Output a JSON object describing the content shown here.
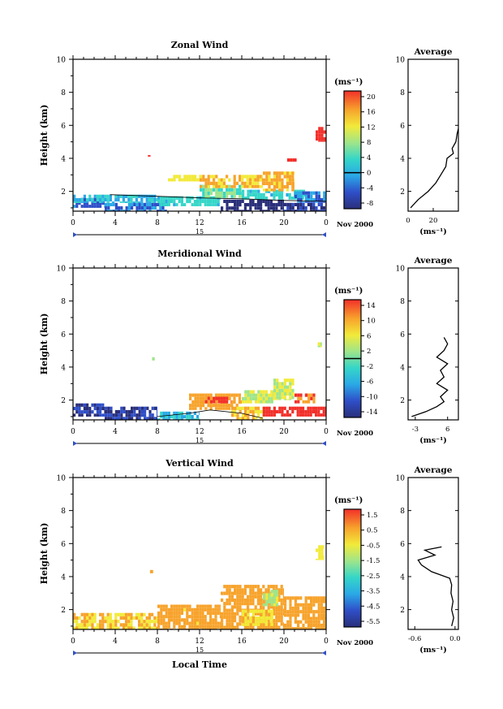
{
  "chart_data": [
    {
      "type": "heatmap",
      "title": "Zonal Wind",
      "ylabel": "Height (km)",
      "ylim": [
        0.8,
        10
      ],
      "yticks": [
        2,
        4,
        6,
        8,
        10
      ],
      "xlim": [
        0,
        24
      ],
      "xticks": [
        "0",
        "4",
        "8",
        "12",
        "16",
        "20",
        "0"
      ],
      "date_day": "15",
      "date_label": "Nov 2000",
      "colorbar_unit": "(ms⁻¹)",
      "colorbar_ticks": [
        "20",
        "16",
        "12",
        "8",
        "4",
        "0",
        "-4",
        "-8"
      ],
      "colorbar_range": [
        -10,
        22
      ],
      "blobs": [
        {
          "x": [
            0,
            3
          ],
          "y": [
            1.0,
            1.6
          ],
          "v": -3
        },
        {
          "x": [
            3,
            9
          ],
          "y": [
            0.8,
            1.3
          ],
          "v": -2
        },
        {
          "x": [
            0,
            8
          ],
          "y": [
            1.3,
            1.8
          ],
          "v": 2
        },
        {
          "x": [
            8,
            14
          ],
          "y": [
            1.1,
            1.7
          ],
          "v": 3
        },
        {
          "x": [
            14,
            20
          ],
          "y": [
            0.8,
            1.5
          ],
          "v": -8
        },
        {
          "x": [
            20,
            24
          ],
          "y": [
            0.8,
            1.3
          ],
          "v": -6
        },
        {
          "x": [
            12,
            16
          ],
          "y": [
            1.6,
            2.4
          ],
          "v": 6
        },
        {
          "x": [
            16,
            22
          ],
          "y": [
            1.5,
            2.1
          ],
          "v": 3
        },
        {
          "x": [
            12,
            18
          ],
          "y": [
            2.2,
            3.0
          ],
          "v": 14
        },
        {
          "x": [
            18,
            21
          ],
          "y": [
            2.0,
            3.2
          ],
          "v": 15
        },
        {
          "x": [
            9,
            12
          ],
          "y": [
            2.6,
            3.0
          ],
          "v": 12
        },
        {
          "x": [
            20.3,
            21.2
          ],
          "y": [
            3.8,
            4.0
          ],
          "v": 20
        },
        {
          "x": [
            23,
            24
          ],
          "y": [
            5.0,
            5.9
          ],
          "v": 21
        },
        {
          "x": [
            7.1,
            7.4
          ],
          "y": [
            4.1,
            4.2
          ],
          "v": 20
        },
        {
          "x": [
            21,
            24
          ],
          "y": [
            1.3,
            2.0
          ],
          "v": -2
        }
      ],
      "contour_zero": [
        [
          3.5,
          1.8
        ],
        [
          8,
          1.7
        ],
        [
          12,
          1.6
        ],
        [
          16,
          1.55
        ],
        [
          20,
          1.45
        ],
        [
          24,
          1.4
        ]
      ],
      "avg_profile": {
        "title": "Average",
        "xlabel": "(ms⁻¹)",
        "xticks": [
          "0",
          "20"
        ],
        "xlim": [
          0,
          40
        ],
        "heights": [
          1.0,
          1.5,
          2.0,
          2.5,
          3.0,
          3.5,
          4.0,
          4.3,
          4.6,
          5.0,
          5.5,
          5.8
        ],
        "values": [
          2,
          8,
          16,
          22,
          26,
          30,
          31,
          36,
          35,
          38,
          39,
          40
        ]
      }
    },
    {
      "type": "heatmap",
      "title": "Meridional Wind",
      "ylabel": "Height (km)",
      "ylim": [
        0.8,
        10
      ],
      "yticks": [
        2,
        4,
        6,
        8,
        10
      ],
      "xlim": [
        0,
        24
      ],
      "xticks": [
        "0",
        "4",
        "8",
        "12",
        "16",
        "20",
        "0"
      ],
      "date_day": "15",
      "date_label": "Nov 2000",
      "colorbar_unit": "(ms⁻¹)",
      "colorbar_ticks": [
        "14",
        "10",
        "6",
        "2",
        "-2",
        "-6",
        "-10",
        "-14"
      ],
      "colorbar_range": [
        -16,
        16
      ],
      "blobs": [
        {
          "x": [
            0,
            3
          ],
          "y": [
            1.0,
            1.8
          ],
          "v": -12
        },
        {
          "x": [
            3,
            8
          ],
          "y": [
            0.8,
            1.6
          ],
          "v": -12
        },
        {
          "x": [
            8,
            12
          ],
          "y": [
            0.8,
            1.3
          ],
          "v": -4
        },
        {
          "x": [
            11,
            16
          ],
          "y": [
            1.4,
            2.4
          ],
          "v": 10
        },
        {
          "x": [
            12.5,
            15
          ],
          "y": [
            1.8,
            2.2
          ],
          "v": 13
        },
        {
          "x": [
            15,
            18
          ],
          "y": [
            0.8,
            1.6
          ],
          "v": 8
        },
        {
          "x": [
            18,
            24
          ],
          "y": [
            1.0,
            1.6
          ],
          "v": 15
        },
        {
          "x": [
            19,
            21
          ],
          "y": [
            2.0,
            3.3
          ],
          "v": 4
        },
        {
          "x": [
            21,
            23
          ],
          "y": [
            1.8,
            2.4
          ],
          "v": 12
        },
        {
          "x": [
            16,
            19
          ],
          "y": [
            1.8,
            2.6
          ],
          "v": 4
        },
        {
          "x": [
            23.2,
            23.6
          ],
          "y": [
            5.2,
            5.5
          ],
          "v": 4
        },
        {
          "x": [
            7.5,
            7.8
          ],
          "y": [
            4.4,
            4.6
          ],
          "v": 3
        }
      ],
      "contour_zero": [
        [
          8,
          1.0
        ],
        [
          11,
          1.2
        ],
        [
          13,
          1.4
        ],
        [
          16,
          1.2
        ],
        [
          18,
          0.9
        ]
      ],
      "avg_profile": {
        "title": "Average",
        "xlabel": "(ms⁻¹)",
        "xticks": [
          "-3",
          "6"
        ],
        "xlim": [
          -5,
          9
        ],
        "heights": [
          1.0,
          1.3,
          1.6,
          1.9,
          2.2,
          2.6,
          3.0,
          3.4,
          3.8,
          4.2,
          4.6,
          5.0,
          5.4,
          5.8
        ],
        "values": [
          -4,
          0,
          3,
          5,
          4,
          6,
          3,
          5,
          4,
          6,
          3,
          5,
          6,
          5
        ]
      }
    },
    {
      "type": "heatmap",
      "title": "Vertical Wind",
      "ylabel": "Height (km)",
      "xlabel": "Local Time",
      "ylim": [
        0.8,
        10
      ],
      "yticks": [
        2,
        4,
        6,
        8,
        10
      ],
      "xlim": [
        0,
        24
      ],
      "xticks": [
        "0",
        "4",
        "8",
        "12",
        "16",
        "20",
        "0"
      ],
      "date_day": "15",
      "date_label": "Nov 2000",
      "colorbar_unit": "(ms⁻¹)",
      "colorbar_ticks": [
        "1.5",
        "0.5",
        "-0.5",
        "-1.5",
        "-2.5",
        "-3.5",
        "-4.5",
        "-5.5"
      ],
      "colorbar_range": [
        -6.5,
        2.5
      ],
      "blobs": [
        {
          "x": [
            0,
            8
          ],
          "y": [
            0.8,
            1.8
          ],
          "v": 0.3
        },
        {
          "x": [
            8,
            14
          ],
          "y": [
            0.8,
            2.3
          ],
          "v": 0.6
        },
        {
          "x": [
            14,
            20
          ],
          "y": [
            0.8,
            3.5
          ],
          "v": 0.9
        },
        {
          "x": [
            20,
            24
          ],
          "y": [
            0.8,
            2.8
          ],
          "v": 0.7
        },
        {
          "x": [
            16,
            19
          ],
          "y": [
            1.0,
            2.0
          ],
          "v": 0.1
        },
        {
          "x": [
            18,
            19.5
          ],
          "y": [
            2.2,
            3.2
          ],
          "v": -1.0
        },
        {
          "x": [
            23,
            23.8
          ],
          "y": [
            5.0,
            5.9
          ],
          "v": -0.4
        },
        {
          "x": [
            7.3,
            7.6
          ],
          "y": [
            4.2,
            4.4
          ],
          "v": 1.0
        }
      ],
      "contour_zero": [],
      "avg_profile": {
        "title": "Average",
        "xlabel": "(ms⁻¹)",
        "xticks": [
          "-0.6",
          "0.0"
        ],
        "xlim": [
          -0.7,
          0.05
        ],
        "heights": [
          1.0,
          1.5,
          2.0,
          2.5,
          3.0,
          3.5,
          3.9,
          4.3,
          4.7,
          5.0,
          5.3,
          5.6,
          5.8
        ],
        "values": [
          -0.05,
          -0.02,
          -0.05,
          -0.03,
          -0.06,
          -0.05,
          -0.08,
          -0.35,
          -0.5,
          -0.55,
          -0.3,
          -0.45,
          -0.2
        ]
      }
    }
  ]
}
